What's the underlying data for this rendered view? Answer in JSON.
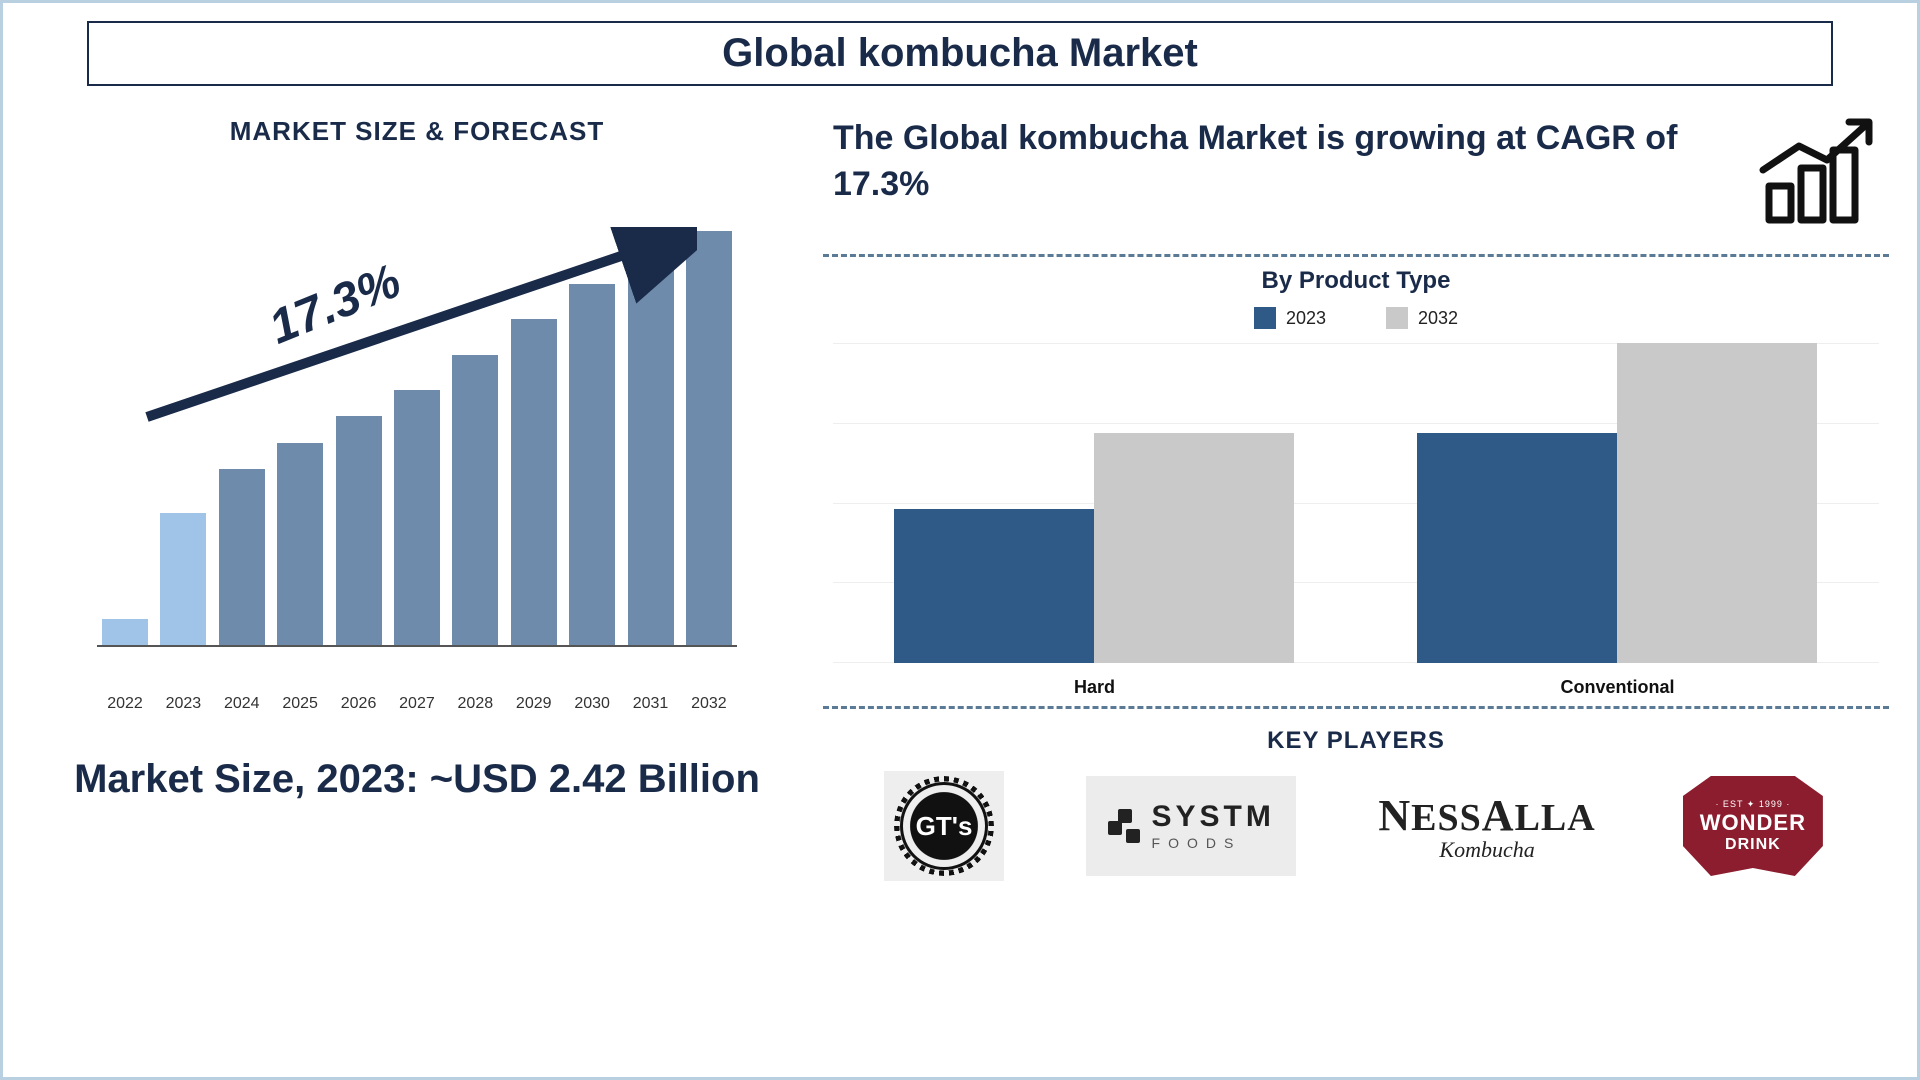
{
  "title": "Global kombucha Market",
  "left": {
    "section_label": "MARKET SIZE & FORECAST",
    "cagr_label": "17.3%",
    "market_size_text": "Market Size, 2023: ~USD 2.42 Billion",
    "forecast_chart": {
      "type": "bar",
      "years": [
        "2022",
        "2023",
        "2024",
        "2025",
        "2026",
        "2027",
        "2028",
        "2029",
        "2030",
        "2031",
        "2032"
      ],
      "heights_pct": [
        6,
        30,
        40,
        46,
        52,
        58,
        66,
        74,
        82,
        92,
        94
      ],
      "colors": [
        "#9fc4e8",
        "#9fc4e8",
        "#6f8bab",
        "#6f8bab",
        "#6f8bab",
        "#6f8bab",
        "#6f8bab",
        "#6f8bab",
        "#6f8bab",
        "#6f8bab",
        "#6f8bab"
      ],
      "axis_color": "#555555",
      "arrow_color": "#1a2b4a"
    }
  },
  "right": {
    "headline": "The Global kombucha Market is growing at CAGR of 17.3%",
    "product_type": {
      "title": "By Product Type",
      "legend": [
        {
          "label": "2023",
          "color": "#2f5a87"
        },
        {
          "label": "2032",
          "color": "#c9c9c9"
        }
      ],
      "categories": [
        "Hard",
        "Conventional"
      ],
      "series": {
        "2023": [
          48,
          72
        ],
        "2032": [
          72,
          100
        ]
      },
      "grid_lines": 4,
      "grid_color": "#eeeeee",
      "background_color": "#ffffff"
    },
    "key_players": {
      "title": "KEY PLAYERS",
      "players": [
        "GT's",
        "SYSTM FOODS",
        "NessAlla Kombucha",
        "Wonder Drink"
      ]
    }
  },
  "colors": {
    "text_main": "#1a2b4a",
    "dash_line": "#5a7a95",
    "border": "#b8d0e0"
  }
}
